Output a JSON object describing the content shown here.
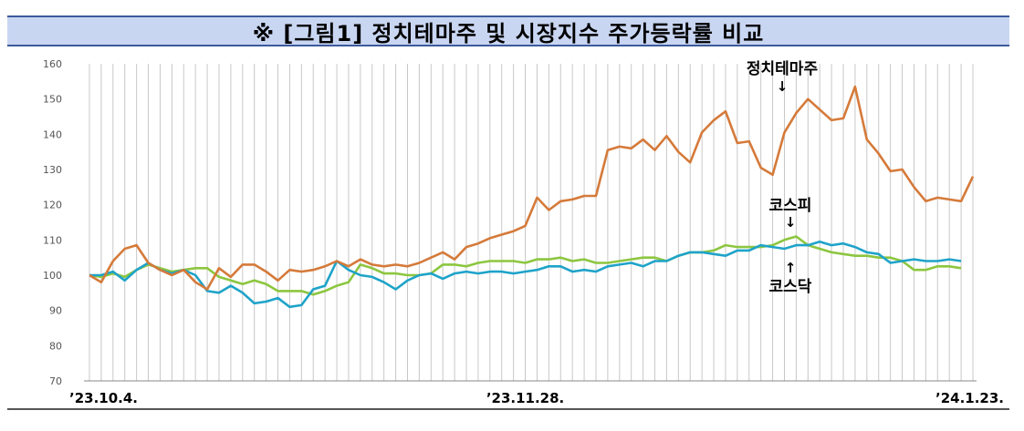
{
  "title": "※ [그림1] 정치테마주 및 시장지수 주가등락률 비교",
  "colors": {
    "theme": "#d57a3a",
    "kospi": "#8cc63f",
    "kosdaq": "#1ea3c9",
    "band": "#c9d6f2",
    "grid": "#c8c8c8"
  },
  "annotations": {
    "theme": {
      "label": "정치테마주",
      "arrow": "↓"
    },
    "kospi": {
      "label": "코스피",
      "arrow": "↓"
    },
    "kosdaq": {
      "label": "코스닥",
      "arrow": "↑"
    }
  },
  "chart_data": {
    "type": "line",
    "ylim": [
      70,
      160
    ],
    "yticks": [
      70,
      80,
      90,
      100,
      110,
      120,
      130,
      140,
      150,
      160
    ],
    "xtick_labels": [
      {
        "index": 0,
        "text": "’23.10.4."
      },
      {
        "index": 37,
        "text": "’23.11.28."
      },
      {
        "index": 77,
        "text": "’24.1.23."
      }
    ],
    "grid": "vertical",
    "series": [
      {
        "name": "정치테마주",
        "color": "#d57a3a",
        "values": [
          100,
          98,
          104,
          107.5,
          108.5,
          103.5,
          101.5,
          100,
          101.5,
          98,
          96,
          102,
          99.5,
          103,
          103,
          101,
          98.5,
          101.5,
          101,
          101.5,
          102.5,
          104,
          102.5,
          104.5,
          103,
          102.5,
          103,
          102.5,
          103.5,
          105,
          106.5,
          104.5,
          108,
          109,
          110.5,
          111.5,
          112.5,
          114,
          122,
          118.5,
          121,
          121.5,
          122.5,
          122.5,
          135.5,
          136.5,
          136,
          138.5,
          135.5,
          139.5,
          135,
          132,
          140.5,
          144,
          146.5,
          137.5,
          138,
          130.5,
          128.5,
          140.5,
          146,
          150,
          147,
          144,
          144.5,
          153.5,
          138.5,
          134.5,
          129.5,
          130,
          125,
          121,
          122,
          121.5,
          121,
          128
        ]
      },
      {
        "name": "코스피",
        "color": "#8cc63f",
        "values": [
          100,
          99.5,
          100.5,
          99.5,
          101.5,
          103,
          102,
          101,
          101.5,
          102,
          102,
          99.5,
          98.5,
          97.5,
          98.5,
          97.5,
          95.5,
          95.5,
          95.5,
          94.5,
          95.5,
          97,
          98,
          103,
          102,
          100.5,
          100.5,
          100,
          100,
          100.5,
          103,
          103,
          102.5,
          103.5,
          104,
          104,
          104,
          103.5,
          104.5,
          104.5,
          105,
          104,
          104.5,
          103.5,
          103.5,
          104,
          104.5,
          105,
          105,
          104,
          105.5,
          106.5,
          106.5,
          107,
          108.5,
          108,
          108,
          108,
          108.5,
          110,
          111,
          108.5,
          107.5,
          106.5,
          106,
          105.5,
          105.5,
          105,
          105,
          104,
          101.5,
          101.5,
          102.5,
          102.5,
          102
        ]
      },
      {
        "name": "코스닥",
        "color": "#1ea3c9",
        "values": [
          100,
          100,
          101,
          98.5,
          101.5,
          103.5,
          101.5,
          100.5,
          101.5,
          100,
          95.5,
          95,
          97,
          95,
          92,
          92.5,
          93.5,
          91,
          91.5,
          96,
          97,
          104,
          101.5,
          100,
          99.5,
          98,
          96,
          98.5,
          100,
          100.5,
          99,
          100.5,
          101,
          100.5,
          101,
          101,
          100.5,
          101,
          101.5,
          102.5,
          102.5,
          101,
          101.5,
          101,
          102.5,
          103,
          103.5,
          102.5,
          104,
          104,
          105.5,
          106.5,
          106.5,
          106,
          105.5,
          107,
          107,
          108.5,
          108,
          107.5,
          108.5,
          108.5,
          109.5,
          108.5,
          109,
          108,
          106.5,
          106,
          103.5,
          104,
          104.5,
          104,
          104,
          104.5,
          104
        ]
      }
    ]
  }
}
